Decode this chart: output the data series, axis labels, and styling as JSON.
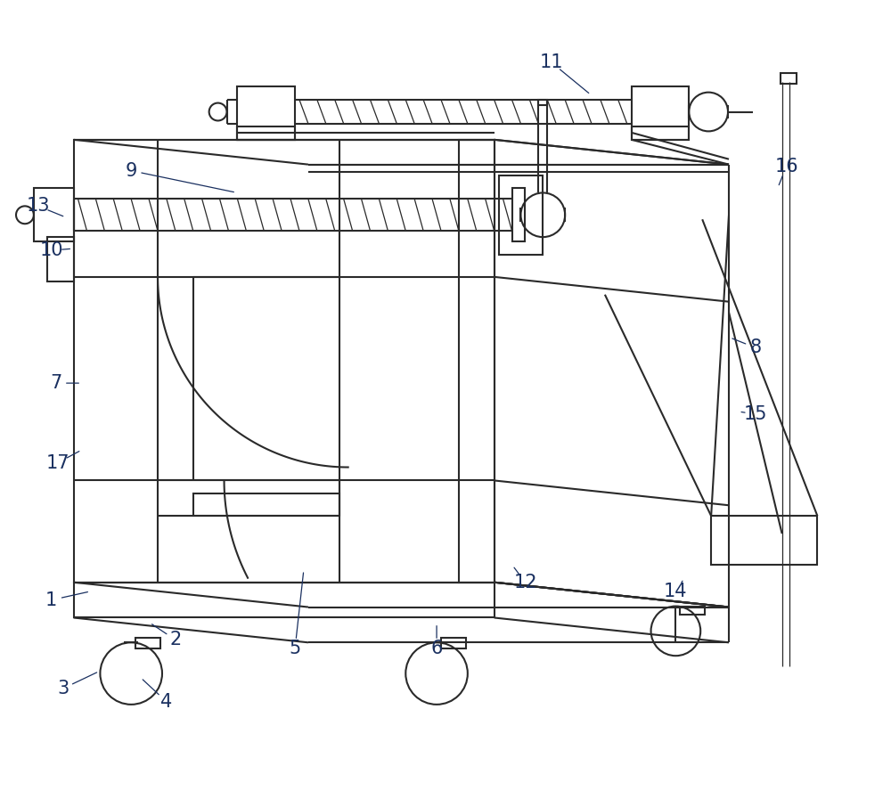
{
  "bg_color": "#ffffff",
  "line_color": "#2a2a2a",
  "label_color": "#1a3060",
  "figsize": [
    10.0,
    8.97
  ],
  "dpi": 100,
  "labels": {
    "1": [
      55,
      675,
      100,
      665
    ],
    "2": [
      195,
      720,
      165,
      700
    ],
    "3": [
      68,
      775,
      110,
      755
    ],
    "4": [
      185,
      790,
      155,
      762
    ],
    "5": [
      330,
      730,
      340,
      640
    ],
    "6": [
      490,
      730,
      490,
      700
    ],
    "7": [
      60,
      430,
      90,
      430
    ],
    "8": [
      850,
      390,
      820,
      378
    ],
    "9": [
      145,
      190,
      265,
      215
    ],
    "10": [
      55,
      280,
      80,
      278
    ],
    "11": [
      620,
      68,
      665,
      105
    ],
    "12": [
      590,
      655,
      575,
      635
    ],
    "13": [
      40,
      230,
      72,
      243
    ],
    "14": [
      760,
      665,
      770,
      650
    ],
    "15": [
      850,
      465,
      830,
      462
    ],
    "16": [
      885,
      185,
      875,
      210
    ],
    "17": [
      62,
      520,
      90,
      505
    ]
  }
}
